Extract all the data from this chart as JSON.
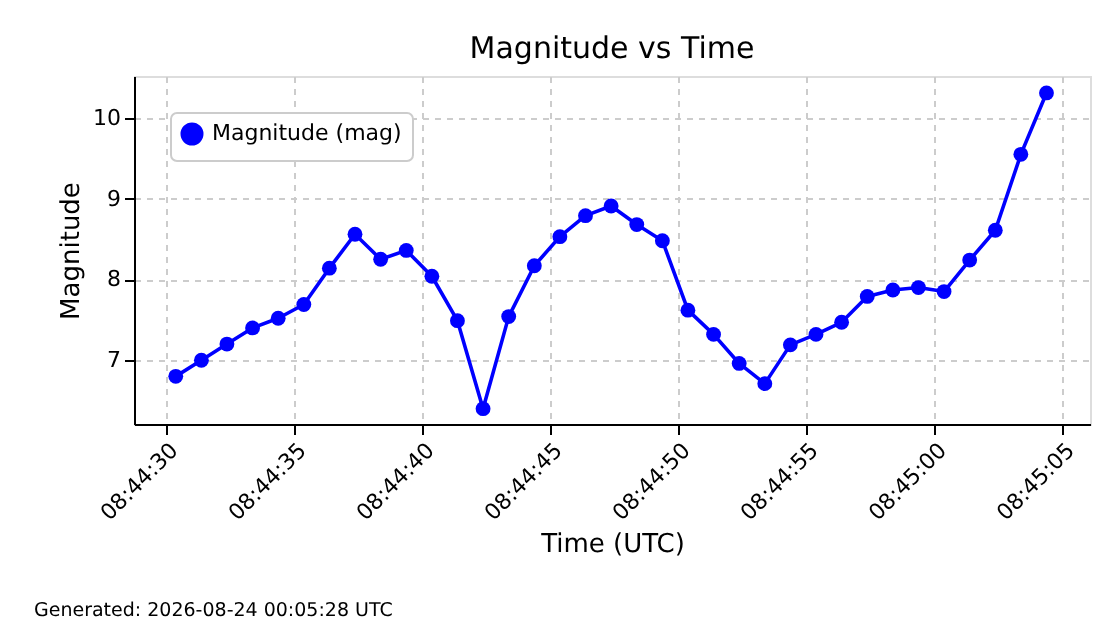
{
  "chart_data": {
    "type": "line",
    "title": "Magnitude vs Time",
    "xlabel": "Time (UTC)",
    "ylabel": "Magnitude",
    "x": [
      8.741778,
      8.742056,
      8.742333,
      8.742611,
      8.742889,
      8.743167,
      8.743444,
      8.743722,
      8.744,
      8.744278,
      8.744556,
      8.744833,
      8.745111,
      8.745389,
      8.745667,
      8.745944,
      8.746222,
      8.7465,
      8.746778,
      8.747056,
      8.747333,
      8.747611,
      8.747889,
      8.748167,
      8.748444,
      8.748722,
      8.749,
      8.749278,
      8.749556,
      8.749833,
      8.750111,
      8.750389,
      8.750667,
      8.750944,
      8.751222
    ],
    "series": [
      {
        "name": "Magnitude (mag)",
        "color": "#0000ff",
        "values": [
          6.8,
          7.0,
          7.2,
          7.4,
          7.52,
          7.69,
          8.14,
          8.56,
          8.25,
          8.36,
          8.04,
          7.49,
          6.4,
          7.54,
          8.17,
          8.53,
          8.79,
          8.91,
          8.68,
          8.48,
          7.62,
          7.32,
          6.96,
          6.71,
          7.19,
          7.32,
          7.47,
          7.79,
          7.87,
          7.9,
          7.85,
          8.24,
          8.61,
          9.55,
          10.31
        ]
      }
    ],
    "xlim": [
      8.741325,
      8.751694
    ],
    "xticks": [
      {
        "value": 8.741667,
        "label": "08:44:30"
      },
      {
        "value": 8.743056,
        "label": "08:44:35"
      },
      {
        "value": 8.744444,
        "label": "08:44:40"
      },
      {
        "value": 8.745833,
        "label": "08:44:45"
      },
      {
        "value": 8.747222,
        "label": "08:44:50"
      },
      {
        "value": 8.748611,
        "label": "08:44:55"
      },
      {
        "value": 8.75,
        "label": "08:45:00"
      },
      {
        "value": 8.751389,
        "label": "08:45:05"
      }
    ],
    "ylim": [
      6.21,
      10.52
    ],
    "yticks": [
      7,
      8,
      9,
      10
    ],
    "grid": true,
    "legend": "top left",
    "marker": "circle",
    "line_style": "solid",
    "annotations": [
      "Generated: 2026-08-24 00:05:28 UTC"
    ]
  }
}
